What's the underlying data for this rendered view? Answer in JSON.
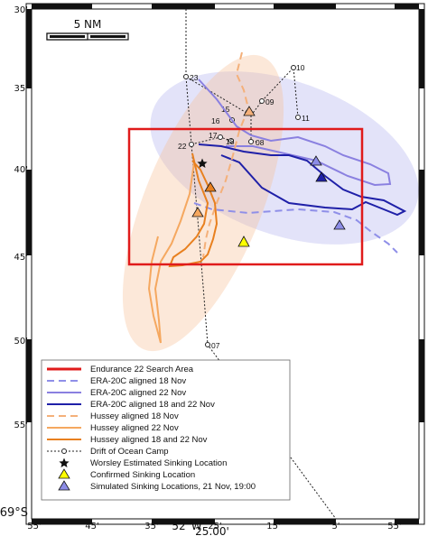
{
  "scale_bar": {
    "label": "5 NM"
  },
  "y_ticks": [
    "30'",
    "35'",
    "40'",
    "45'",
    "50'",
    "55'"
  ],
  "x_ticks": [
    "55'",
    "45'",
    "35'",
    "25'",
    "15'",
    "5'",
    "55'"
  ],
  "corner_label": "69°S",
  "x_center_label": "52°W",
  "x_value_label": "25.00'",
  "stations": [
    "23",
    "10",
    "09",
    "15",
    "11",
    "16",
    "17",
    "22",
    "18",
    "08",
    "07"
  ],
  "colors": {
    "search_area": "#e01b1b",
    "era_18": "#8f8fe8",
    "era_22": "#8a80e0",
    "era_both": "#1f20a8",
    "hussey_18": "#f4b07a",
    "hussey_22": "#f5a860",
    "hussey_both": "#e8801f",
    "drift": "#222222",
    "confirmed": "#ffff00",
    "simulated": "#8c8ce6"
  },
  "legend": {
    "items": [
      {
        "label": "Endurance 22 Search Area",
        "icon": "red-line"
      },
      {
        "label": "ERA-20C aligned 18 Nov",
        "icon": "dashed-light-blue-line"
      },
      {
        "label": "ERA-20C aligned 22 Nov",
        "icon": "light-purple-line"
      },
      {
        "label": "ERA-20C aligned 18 and 22 Nov",
        "icon": "dark-blue-line"
      },
      {
        "label": "Hussey aligned 18 Nov",
        "icon": "dashed-light-orange-line"
      },
      {
        "label": "Hussey aligned 22 Nov",
        "icon": "light-orange-line"
      },
      {
        "label": "Hussey aligned 18 and 22 Nov",
        "icon": "orange-line"
      },
      {
        "label": "Drift of Ocean Camp",
        "icon": "dotted-line-circle"
      },
      {
        "label": "Worsley Estimated Sinking Location",
        "icon": "star"
      },
      {
        "label": "Confirmed Sinking Location",
        "icon": "yellow-triangle"
      },
      {
        "label": "Simulated Sinking Locations, 21 Nov, 19:00",
        "icon": "purple-triangle"
      }
    ]
  }
}
